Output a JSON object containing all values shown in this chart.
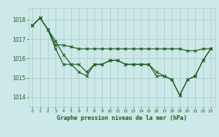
{
  "title": "Graphe pression niveau de la mer (hPa)",
  "bg_color": "#cce8e8",
  "grid_color": "#aacccc",
  "line_color": "#1a5c1a",
  "ylim": [
    1013.5,
    1018.6
  ],
  "xlim": [
    -0.5,
    23.5
  ],
  "yticks": [
    1014,
    1015,
    1016,
    1017,
    1018
  ],
  "xticks": [
    0,
    1,
    2,
    3,
    4,
    5,
    6,
    7,
    8,
    9,
    10,
    11,
    12,
    13,
    14,
    15,
    16,
    17,
    18,
    19,
    20,
    21,
    22,
    23
  ],
  "series": [
    [
      1017.7,
      1018.1,
      1017.5,
      1016.9,
      1016.2,
      1015.7,
      1015.7,
      1015.3,
      1015.7,
      1015.7,
      1015.9,
      1015.9,
      1015.7,
      1015.7,
      1015.7,
      1015.7,
      1015.3,
      1015.1,
      1014.9,
      1014.1,
      1014.9,
      1015.1,
      1015.9,
      1016.5
    ],
    [
      1017.7,
      1018.1,
      1017.5,
      1016.7,
      1016.7,
      1016.6,
      1016.5,
      1016.5,
      1016.5,
      1016.5,
      1016.5,
      1016.5,
      1016.5,
      1016.5,
      1016.5,
      1016.5,
      1016.5,
      1016.5,
      1016.5,
      1016.5,
      1016.4,
      1016.4,
      1016.5,
      1016.5
    ],
    [
      1017.7,
      1018.1,
      1017.5,
      1016.5,
      1015.7,
      1015.7,
      1015.3,
      1015.1,
      1015.7,
      1015.7,
      1015.9,
      1015.9,
      1015.7,
      1015.7,
      1015.7,
      1015.7,
      1015.1,
      1015.1,
      1014.9,
      1014.1,
      1014.9,
      1015.1,
      1015.9,
      1016.5
    ]
  ]
}
